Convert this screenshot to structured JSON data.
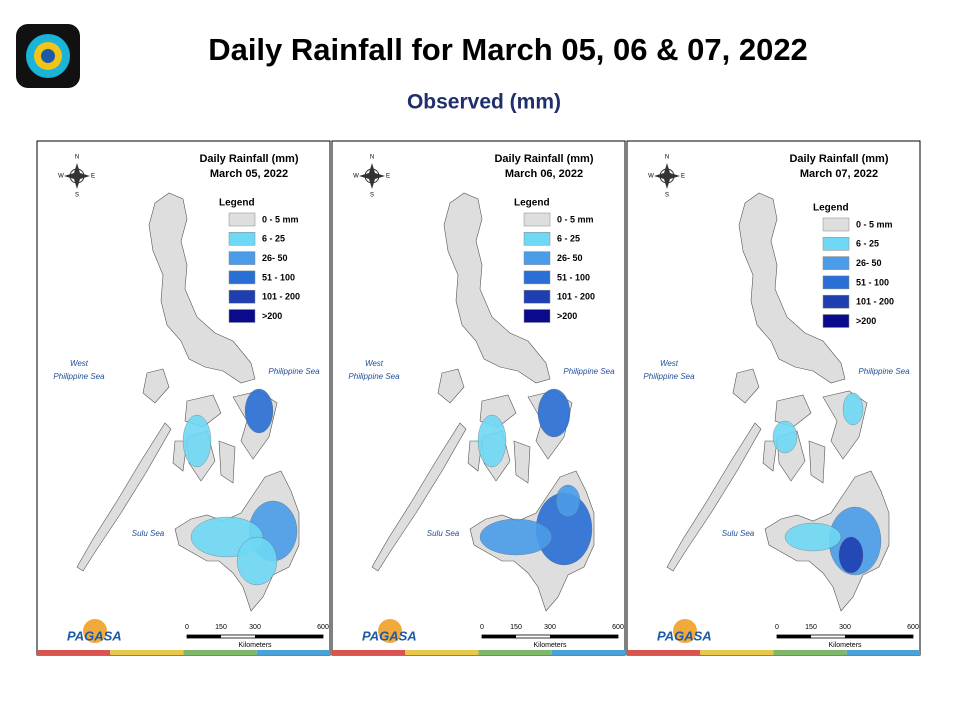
{
  "title": "Daily Rainfall for March 05, 06 & 07, 2022",
  "subtitle": "Observed (mm)",
  "panels": [
    {
      "heading": "Daily Rainfall (mm)",
      "date": "March 05, 2022",
      "legend_title": "Legend",
      "legend": [
        {
          "label": "0 - 5 mm",
          "color": "#dedede"
        },
        {
          "label": "6 - 25",
          "color": "#6fd8f5"
        },
        {
          "label": "26- 50",
          "color": "#4a9ce8"
        },
        {
          "label": "51 - 100",
          "color": "#2a6fd6"
        },
        {
          "label": "101 - 200",
          "color": "#1f3fb0"
        },
        {
          "label": ">200",
          "color": "#0a0a8c"
        }
      ],
      "west_sea": [
        "West",
        "Philippine Sea"
      ],
      "east_sea": "Philippine Sea",
      "south_sea": "Sulu Sea",
      "compass": [
        "N",
        "S",
        "E",
        "W"
      ],
      "scale": {
        "ticks": [
          0,
          150,
          300,
          600
        ],
        "label": "Kilometers"
      },
      "logo": "PAGASA"
    },
    {
      "heading": "Daily Rainfall (mm)",
      "date": "March 06, 2022",
      "legend_title": "Legend",
      "legend": [
        {
          "label": "0 - 5 mm",
          "color": "#dedede"
        },
        {
          "label": "6 - 25",
          "color": "#6fd8f5"
        },
        {
          "label": "26- 50",
          "color": "#4a9ce8"
        },
        {
          "label": "51 - 100",
          "color": "#2a6fd6"
        },
        {
          "label": "101 - 200",
          "color": "#1f3fb0"
        },
        {
          "label": ">200",
          "color": "#0a0a8c"
        }
      ],
      "west_sea": [
        "West",
        "Philippine Sea"
      ],
      "east_sea": "Philippine Sea",
      "south_sea": "Sulu Sea",
      "compass": [
        "N",
        "S",
        "E",
        "W"
      ],
      "scale": {
        "ticks": [
          0,
          150,
          300,
          600
        ],
        "label": "Kilometers"
      },
      "logo": "PAGASA"
    },
    {
      "heading": "Daily Rainfall (mm)",
      "date": "March 07, 2022",
      "legend_title": "Legend",
      "legend": [
        {
          "label": "0 - 5 mm",
          "color": "#dedede"
        },
        {
          "label": "6 - 25",
          "color": "#6fd8f5"
        },
        {
          "label": "26- 50",
          "color": "#4a9ce8"
        },
        {
          "label": "51 - 100",
          "color": "#2a6fd6"
        },
        {
          "label": "101 - 200",
          "color": "#1f3fb0"
        },
        {
          "label": ">200",
          "color": "#0a0a8c"
        }
      ],
      "west_sea": [
        "West",
        "Philippine Sea"
      ],
      "east_sea": "Philippine Sea",
      "south_sea": "Sulu Sea",
      "compass": [
        "N",
        "S",
        "E",
        "W"
      ],
      "scale": {
        "ticks": [
          0,
          150,
          300,
          600
        ],
        "label": "Kilometers"
      },
      "logo": "PAGASA"
    }
  ]
}
